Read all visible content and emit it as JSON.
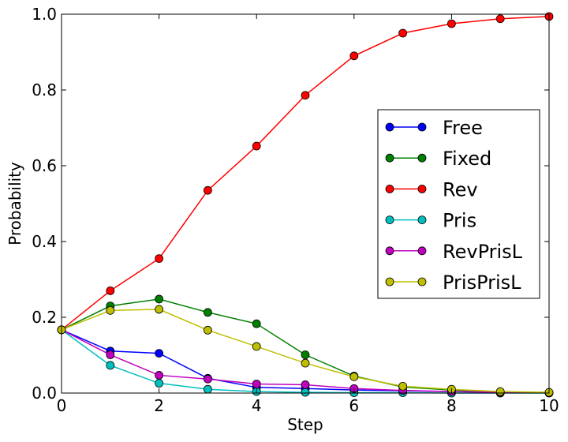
{
  "chart_data": {
    "type": "line",
    "title": "",
    "xlabel": "Step",
    "ylabel": "Probability",
    "xlim": [
      0,
      10
    ],
    "ylim": [
      0,
      1.0
    ],
    "x_ticks": [
      0,
      2,
      4,
      6,
      8,
      10
    ],
    "y_ticks": [
      0.0,
      0.2,
      0.4,
      0.6,
      0.8,
      1.0
    ],
    "x_tick_labels": [
      "0",
      "2",
      "4",
      "6",
      "8",
      "10"
    ],
    "y_tick_labels": [
      "0.0",
      "0.2",
      "0.4",
      "0.6",
      "0.8",
      "1.0"
    ],
    "grid": false,
    "legend_position": "right",
    "x": [
      0,
      1,
      2,
      3,
      4,
      5,
      6,
      7,
      8,
      9,
      10
    ],
    "series": [
      {
        "name": "Free",
        "color": "#0000ff",
        "values": [
          0.167,
          0.111,
          0.105,
          0.039,
          0.015,
          0.012,
          0.008,
          0.006,
          0.004,
          0.002,
          0.001
        ]
      },
      {
        "name": "Fixed",
        "color": "#008000",
        "values": [
          0.167,
          0.23,
          0.248,
          0.213,
          0.183,
          0.101,
          0.045,
          0.016,
          0.008,
          0.003,
          0.001
        ]
      },
      {
        "name": "Rev",
        "color": "#ff0000",
        "values": [
          0.167,
          0.27,
          0.355,
          0.535,
          0.652,
          0.786,
          0.89,
          0.95,
          0.975,
          0.988,
          0.994
        ]
      },
      {
        "name": "Pris",
        "color": "#00bfbf",
        "values": [
          0.167,
          0.073,
          0.026,
          0.01,
          0.004,
          0.002,
          0.001,
          0.001,
          0.0,
          0.0,
          0.0
        ]
      },
      {
        "name": "RevPrisL",
        "color": "#bf00bf",
        "values": [
          0.167,
          0.101,
          0.047,
          0.037,
          0.024,
          0.022,
          0.012,
          0.007,
          0.004,
          0.002,
          0.001
        ]
      },
      {
        "name": "PrisPrisL",
        "color": "#bfbf00",
        "values": [
          0.167,
          0.218,
          0.221,
          0.166,
          0.123,
          0.079,
          0.043,
          0.018,
          0.01,
          0.004,
          0.002
        ]
      }
    ]
  }
}
